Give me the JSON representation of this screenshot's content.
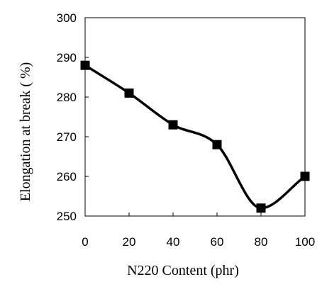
{
  "chart_data": {
    "type": "line",
    "title": "",
    "xlabel": "N220 Content (phr)",
    "ylabel": "Elongation at break ( %)",
    "xlim": [
      0,
      100
    ],
    "ylim": [
      250,
      300
    ],
    "x_ticks": [
      "0",
      "20",
      "40",
      "60",
      "80",
      "100"
    ],
    "y_ticks": [
      "250",
      "260",
      "270",
      "280",
      "290",
      "300"
    ],
    "grid": false,
    "legend": "none",
    "line_style": "smoothed",
    "marker": "filled-square",
    "series": [
      {
        "x": [
          0,
          20,
          40,
          60,
          80,
          100
        ],
        "y": [
          288,
          281,
          273,
          268,
          252,
          260
        ]
      }
    ],
    "colors": {
      "line": "#000000",
      "marker": "#000000",
      "axis": "#000000"
    }
  }
}
